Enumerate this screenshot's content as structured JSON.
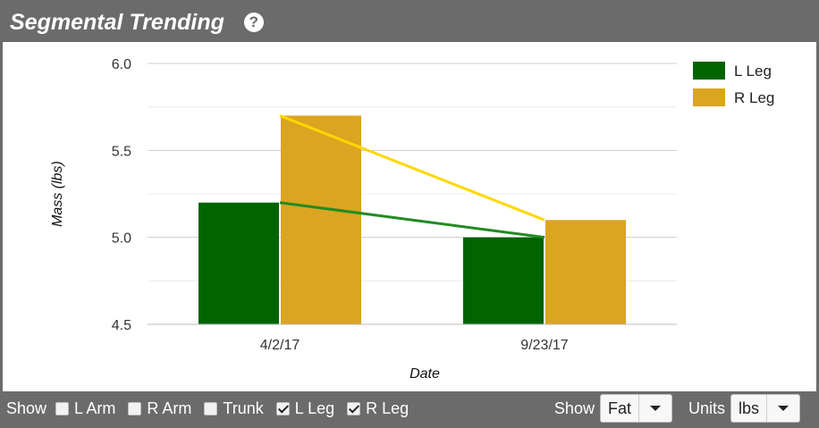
{
  "header": {
    "title": "Segmental Trending",
    "help_glyph": "?"
  },
  "colors": {
    "header_bg": "#6b6b6b",
    "l_leg": "#006400",
    "r_leg": "#daa520",
    "r_leg_trend": "#ffd700",
    "l_leg_trend": "#228b22"
  },
  "chart_data": {
    "type": "bar",
    "categories": [
      "4/2/17",
      "9/23/17"
    ],
    "series": [
      {
        "name": "L Leg",
        "values": [
          5.2,
          5.0
        ],
        "color": "#006400",
        "trend_color": "#228b22"
      },
      {
        "name": "R Leg",
        "values": [
          5.7,
          5.1
        ],
        "color": "#daa520",
        "trend_color": "#ffd700"
      }
    ],
    "xlabel": "Date",
    "ylabel": "Mass (lbs)",
    "ylim": [
      4.5,
      6.0
    ],
    "yticks": [
      "4.5",
      "5.0",
      "5.5",
      "6.0"
    ],
    "grid": true,
    "legend_position": "top-right"
  },
  "footer": {
    "show_label": "Show",
    "checkboxes": [
      {
        "label": "L Arm",
        "checked": false
      },
      {
        "label": "R Arm",
        "checked": false
      },
      {
        "label": "Trunk",
        "checked": false
      },
      {
        "label": "L Leg",
        "checked": true
      },
      {
        "label": "R Leg",
        "checked": true
      }
    ],
    "show_select": {
      "label": "Show",
      "value": "Fat"
    },
    "units_select": {
      "label": "Units",
      "value": "lbs"
    }
  }
}
